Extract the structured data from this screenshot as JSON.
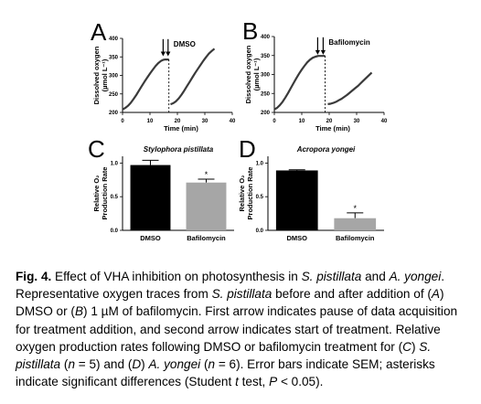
{
  "chart_data": [
    {
      "panel": "A",
      "type": "line",
      "annotation": "DMSO",
      "xlabel": "Time (min)",
      "ylabel_lines": [
        "Dissolved oxygen",
        "(µmol L⁻¹)"
      ],
      "xlim": [
        0,
        40
      ],
      "ylim": [
        200,
        400
      ],
      "xticks": [
        "0",
        "10",
        "20",
        "30",
        "40"
      ],
      "yticks": [
        "200",
        "250",
        "300",
        "350",
        "400"
      ],
      "arrows_x": [
        14.8,
        16.6
      ],
      "break_x": 16.9,
      "series": [
        {
          "x": [
            0,
            1,
            2,
            3,
            4,
            5,
            6,
            7,
            8,
            9,
            10,
            11,
            12,
            13,
            14,
            14.8,
            15.5,
            16.2,
            16.9
          ],
          "values": [
            208,
            212,
            218,
            226,
            236,
            247,
            259,
            271,
            283,
            294,
            305,
            315,
            325,
            333,
            339,
            342,
            343,
            343,
            343
          ]
        },
        {
          "x": [
            17.5,
            18.5,
            19.5,
            20.5,
            21.5,
            22.5,
            23.5,
            24.5,
            25.5,
            26.5,
            27.5,
            28.5,
            29.5,
            30.5,
            31.5,
            32.5,
            33.5
          ],
          "values": [
            222,
            225,
            230,
            238,
            248,
            259,
            271,
            283,
            295,
            307,
            318,
            329,
            340,
            350,
            359,
            366,
            372
          ]
        }
      ]
    },
    {
      "panel": "B",
      "type": "line",
      "annotation": "Bafilomycin",
      "xlabel": "Time (min)",
      "ylabel_lines": [
        "Dissolved oxygen",
        "(µmol L⁻¹)"
      ],
      "xlim": [
        0,
        40
      ],
      "ylim": [
        200,
        400
      ],
      "xticks": [
        "0",
        "10",
        "20",
        "30",
        "40"
      ],
      "yticks": [
        "200",
        "250",
        "300",
        "350",
        "400"
      ],
      "arrows_x": [
        15.8,
        17.8
      ],
      "break_x": 18.5,
      "series": [
        {
          "x": [
            0,
            1,
            2,
            3,
            4,
            5,
            6,
            7,
            8,
            9,
            10,
            11,
            12,
            13,
            14,
            15,
            16,
            17,
            18.5
          ],
          "values": [
            208,
            212,
            219,
            228,
            239,
            251,
            264,
            277,
            290,
            302,
            313,
            323,
            332,
            339,
            344,
            347,
            349,
            349,
            349
          ]
        },
        {
          "x": [
            19.5,
            20.5,
            21.5,
            22.5,
            23.5,
            24.5,
            25.5,
            26.5,
            27.5,
            28.5,
            29.5,
            30.5,
            31.5,
            32.5,
            33.5,
            34.5,
            35.5
          ],
          "values": [
            222,
            223,
            225,
            228,
            232,
            236,
            241,
            246,
            252,
            258,
            264,
            270,
            277,
            284,
            291,
            298,
            305
          ]
        }
      ]
    },
    {
      "panel": "C",
      "type": "bar",
      "title": "Stylophora pistillata",
      "ylabel_lines": [
        "Relative O₂",
        "Production Rate"
      ],
      "ylim": [
        0,
        1.1
      ],
      "yticks": [
        "0.0",
        "0.5",
        "1.0"
      ],
      "categories": [
        "DMSO",
        "Bafilomycin"
      ],
      "values": [
        0.97,
        0.71
      ],
      "errors": [
        0.07,
        0.05
      ],
      "colors": [
        "#000000",
        "#a6a6a6"
      ],
      "significance": [
        "",
        "*"
      ]
    },
    {
      "panel": "D",
      "type": "bar",
      "title": "Acropora yongei",
      "ylabel_lines": [
        "Relative O₂",
        "Production Rate"
      ],
      "ylim": [
        0,
        1.1
      ],
      "yticks": [
        "0.0",
        "0.5",
        "1.0"
      ],
      "categories": [
        "DMSO",
        "Bafilomycin"
      ],
      "values": [
        0.89,
        0.18
      ],
      "errors": [
        0.01,
        0.08
      ],
      "colors": [
        "#000000",
        "#a6a6a6"
      ],
      "significance": [
        "",
        "*"
      ]
    }
  ],
  "caption": {
    "label": "Fig. 4.",
    "text": " Effect of VHA inhibition on photosynthesis in S. pistillata and A. yongei. Representative oxygen traces from S. pistillata before and after addition of (A) DMSO or (B) 1 µM of bafilomycin. First arrow indicates pause of data acquisition for treatment addition, and second arrow indicates start of treatment. Relative oxygen production rates following DMSO or bafilomycin treatment for (C) S. pistillata (n = 5) and (D) A. yongei (n = 6). Error bars indicate SEM; asterisks indicate significant differences (Student t test, P < 0.05)."
  }
}
